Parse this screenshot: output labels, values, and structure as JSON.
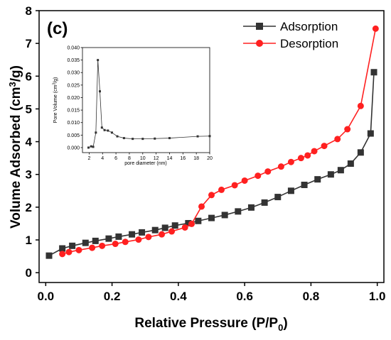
{
  "panel_label": "(c)",
  "chart_data": [
    {
      "type": "line",
      "title": "",
      "xlabel": "Relative Pressure (P/P",
      "xlabel_sub": "0",
      "xlabel_close": ")",
      "ylabel": "Volume Adsorbed (cm",
      "ylabel_sup": "3",
      "ylabel_close": "/g)",
      "xlim": [
        -0.02,
        1.02
      ],
      "ylim": [
        -0.3,
        8
      ],
      "x_ticks": [
        0.0,
        0.2,
        0.4,
        0.6,
        0.8,
        1.0
      ],
      "x_tick_labels": [
        "0.0",
        "0.2",
        "0.4",
        "0.6",
        "0.8",
        "1.0"
      ],
      "y_ticks": [
        0,
        1,
        2,
        3,
        4,
        5,
        6,
        7,
        8
      ],
      "y_tick_labels": [
        "0",
        "1",
        "2",
        "3",
        "4",
        "5",
        "6",
        "7",
        "8"
      ],
      "grid": false,
      "legend_position": "top-right",
      "series": [
        {
          "name": "Adsorption",
          "color": "#333333",
          "marker": "square",
          "x": [
            0.01,
            0.05,
            0.08,
            0.12,
            0.15,
            0.19,
            0.22,
            0.26,
            0.29,
            0.33,
            0.36,
            0.39,
            0.43,
            0.46,
            0.5,
            0.54,
            0.58,
            0.62,
            0.66,
            0.7,
            0.74,
            0.78,
            0.82,
            0.86,
            0.89,
            0.92,
            0.95,
            0.98,
            0.99
          ],
          "y": [
            0.52,
            0.74,
            0.82,
            0.91,
            0.97,
            1.04,
            1.1,
            1.17,
            1.23,
            1.3,
            1.37,
            1.44,
            1.51,
            1.58,
            1.67,
            1.76,
            1.87,
            1.99,
            2.14,
            2.31,
            2.5,
            2.68,
            2.85,
            3.0,
            3.13,
            3.33,
            3.67,
            4.25,
            6.12
          ]
        },
        {
          "name": "Desorption",
          "color": "#ff2020",
          "marker": "circle",
          "x": [
            0.05,
            0.07,
            0.1,
            0.14,
            0.17,
            0.21,
            0.24,
            0.28,
            0.31,
            0.35,
            0.38,
            0.42,
            0.44,
            0.47,
            0.5,
            0.53,
            0.57,
            0.6,
            0.64,
            0.67,
            0.71,
            0.74,
            0.77,
            0.79,
            0.81,
            0.84,
            0.88,
            0.91,
            0.95,
            0.995
          ],
          "y": [
            0.57,
            0.63,
            0.69,
            0.76,
            0.82,
            0.88,
            0.94,
            1.01,
            1.09,
            1.17,
            1.26,
            1.38,
            1.49,
            2.02,
            2.37,
            2.53,
            2.67,
            2.81,
            2.96,
            3.09,
            3.24,
            3.38,
            3.5,
            3.58,
            3.71,
            3.87,
            4.08,
            4.38,
            5.09,
            7.45
          ]
        }
      ]
    },
    {
      "type": "line",
      "title": "",
      "xlabel": "pore diameter (nm)",
      "ylabel": "Pore Volume (cm",
      "ylabel_sup": "3",
      "ylabel_close": "/g)",
      "xlim": [
        1,
        20
      ],
      "ylim": [
        -0.002,
        0.04
      ],
      "x_ticks": [
        2,
        4,
        6,
        8,
        10,
        12,
        14,
        16,
        18,
        20
      ],
      "x_tick_labels": [
        "2",
        "4",
        "6",
        "8",
        "10",
        "12",
        "14",
        "16",
        "18",
        "20"
      ],
      "y_ticks": [
        0,
        0.005,
        0.01,
        0.015,
        0.02,
        0.025,
        0.03,
        0.035,
        0.04
      ],
      "y_tick_labels": [
        "0.000",
        "0.005",
        "0.010",
        "0.015",
        "0.020",
        "0.025",
        "0.030",
        "0.035",
        "0.040"
      ],
      "grid": false,
      "series": [
        {
          "color": "#333333",
          "marker": "square",
          "x": [
            1.9,
            2.3,
            2.6,
            3.0,
            3.3,
            3.6,
            3.9,
            4.3,
            4.8,
            5.4,
            6.2,
            7.2,
            8.5,
            10.0,
            11.8,
            14.0,
            18.2,
            20
          ],
          "y": [
            0.0,
            0.0005,
            0.0003,
            0.006,
            0.035,
            0.0225,
            0.008,
            0.007,
            0.0068,
            0.006,
            0.0045,
            0.0038,
            0.0035,
            0.0035,
            0.0036,
            0.0038,
            0.0045,
            0.0046
          ]
        }
      ]
    }
  ]
}
